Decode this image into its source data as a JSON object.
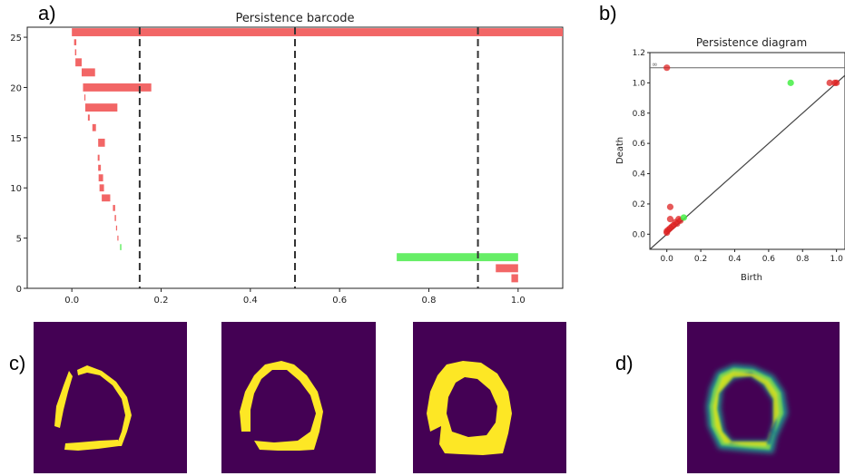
{
  "panel_labels": {
    "a": "a)",
    "b": "b)",
    "c": "c)",
    "d": "d)"
  },
  "colors": {
    "h0_bar": "#f26666",
    "h1_bar": "#66ee66",
    "diag_red": "#dd2222",
    "diag_green": "#44ee44",
    "dashed": "#333333",
    "purple": "#440154",
    "yellow": "#fde725",
    "teal": "#21918c",
    "green_ring": "#7ad151"
  },
  "chart_data": [
    {
      "type": "barcode",
      "title": "Persistence barcode",
      "xlim": [
        -0.1,
        1.1
      ],
      "ylim": [
        0,
        26
      ],
      "x_ticks": [
        0.0,
        0.2,
        0.4,
        0.6,
        0.8,
        1.0
      ],
      "x_tick_labels": [
        "0.0",
        "0.2",
        "0.4",
        "0.6",
        "0.8",
        "1.0"
      ],
      "y_ticks": [
        0,
        5,
        10,
        15,
        20,
        25
      ],
      "y_tick_labels": [
        "0",
        "5",
        "10",
        "15",
        "20",
        "25"
      ],
      "dashed_x": [
        0.152,
        0.5,
        0.91
      ],
      "bars": [
        {
          "y": 25.5,
          "birth": 0.0,
          "death": 1.1,
          "dim": 0,
          "h": 0.8
        },
        {
          "y": 24.5,
          "birth": 0.005,
          "death": 0.01,
          "dim": 0,
          "h": 0.6
        },
        {
          "y": 23.5,
          "birth": 0.007,
          "death": 0.01,
          "dim": 0,
          "h": 0.6
        },
        {
          "y": 22.5,
          "birth": 0.008,
          "death": 0.022,
          "dim": 0,
          "h": 0.8
        },
        {
          "y": 21.5,
          "birth": 0.022,
          "death": 0.052,
          "dim": 0,
          "h": 0.8
        },
        {
          "y": 20.0,
          "birth": 0.025,
          "death": 0.178,
          "dim": 0,
          "h": 0.8
        },
        {
          "y": 19.0,
          "birth": 0.028,
          "death": 0.03,
          "dim": 0,
          "h": 0.6
        },
        {
          "y": 18.0,
          "birth": 0.03,
          "death": 0.102,
          "dim": 0,
          "h": 0.8
        },
        {
          "y": 17.0,
          "birth": 0.036,
          "death": 0.04,
          "dim": 0,
          "h": 0.6
        },
        {
          "y": 16.0,
          "birth": 0.046,
          "death": 0.054,
          "dim": 0,
          "h": 0.7
        },
        {
          "y": 14.5,
          "birth": 0.059,
          "death": 0.074,
          "dim": 0,
          "h": 0.8
        },
        {
          "y": 13.0,
          "birth": 0.058,
          "death": 0.062,
          "dim": 0,
          "h": 0.6
        },
        {
          "y": 12.0,
          "birth": 0.059,
          "death": 0.065,
          "dim": 0,
          "h": 0.6
        },
        {
          "y": 11.0,
          "birth": 0.06,
          "death": 0.07,
          "dim": 0,
          "h": 0.7
        },
        {
          "y": 10.0,
          "birth": 0.062,
          "death": 0.072,
          "dim": 0,
          "h": 0.7
        },
        {
          "y": 9.0,
          "birth": 0.067,
          "death": 0.086,
          "dim": 0,
          "h": 0.7
        },
        {
          "y": 8.0,
          "birth": 0.092,
          "death": 0.097,
          "dim": 0,
          "h": 0.6
        },
        {
          "y": 7.0,
          "birth": 0.096,
          "death": 0.099,
          "dim": 0,
          "h": 0.6
        },
        {
          "y": 6.0,
          "birth": 0.099,
          "death": 0.101,
          "dim": 0,
          "h": 0.5
        },
        {
          "y": 5.0,
          "birth": 0.102,
          "death": 0.104,
          "dim": 0,
          "h": 0.5
        },
        {
          "y": 4.1,
          "birth": 0.108,
          "death": 0.111,
          "dim": 1,
          "h": 0.6
        },
        {
          "y": 3.1,
          "birth": 0.728,
          "death": 1.0,
          "dim": 1,
          "h": 0.8
        },
        {
          "y": 2.0,
          "birth": 0.95,
          "death": 1.0,
          "dim": 0,
          "h": 0.8
        },
        {
          "y": 1.0,
          "birth": 0.985,
          "death": 1.0,
          "dim": 0,
          "h": 0.8
        }
      ]
    },
    {
      "type": "scatter",
      "title": "Persistence diagram",
      "xlabel": "Birth",
      "ylabel": "Death",
      "xlim": [
        -0.1,
        1.05
      ],
      "ylim": [
        -0.1,
        1.2
      ],
      "x_ticks": [
        0.0,
        0.2,
        0.4,
        0.6,
        0.8,
        1.0
      ],
      "x_tick_labels": [
        "0.0",
        "0.2",
        "0.4",
        "0.6",
        "0.8",
        "1.0"
      ],
      "y_ticks": [
        0.0,
        0.2,
        0.4,
        0.6,
        0.8,
        1.0,
        1.2
      ],
      "y_tick_labels": [
        "0.0",
        "0.2",
        "0.4",
        "0.6",
        "0.8",
        "1.0",
        "1.2"
      ],
      "inf_y": 1.1,
      "inf_label": "∞",
      "points_dim0": [
        {
          "x": 0.0,
          "y": 1.1
        },
        {
          "x": 0.96,
          "y": 1.0
        },
        {
          "x": 0.99,
          "y": 1.0
        },
        {
          "x": 1.0,
          "y": 1.0
        },
        {
          "x": 0.02,
          "y": 0.18
        },
        {
          "x": 0.02,
          "y": 0.1
        },
        {
          "x": 0.05,
          "y": 0.08
        },
        {
          "x": 0.07,
          "y": 0.1
        },
        {
          "x": 0.03,
          "y": 0.05
        },
        {
          "x": 0.0,
          "y": 0.02
        },
        {
          "x": 0.01,
          "y": 0.03
        },
        {
          "x": 0.04,
          "y": 0.06
        },
        {
          "x": 0.06,
          "y": 0.07
        },
        {
          "x": 0.08,
          "y": 0.09
        },
        {
          "x": 0.02,
          "y": 0.04
        },
        {
          "x": 0.0,
          "y": 0.01
        }
      ],
      "points_dim1": [
        {
          "x": 0.73,
          "y": 1.0
        },
        {
          "x": 0.1,
          "y": 0.11
        }
      ]
    }
  ]
}
